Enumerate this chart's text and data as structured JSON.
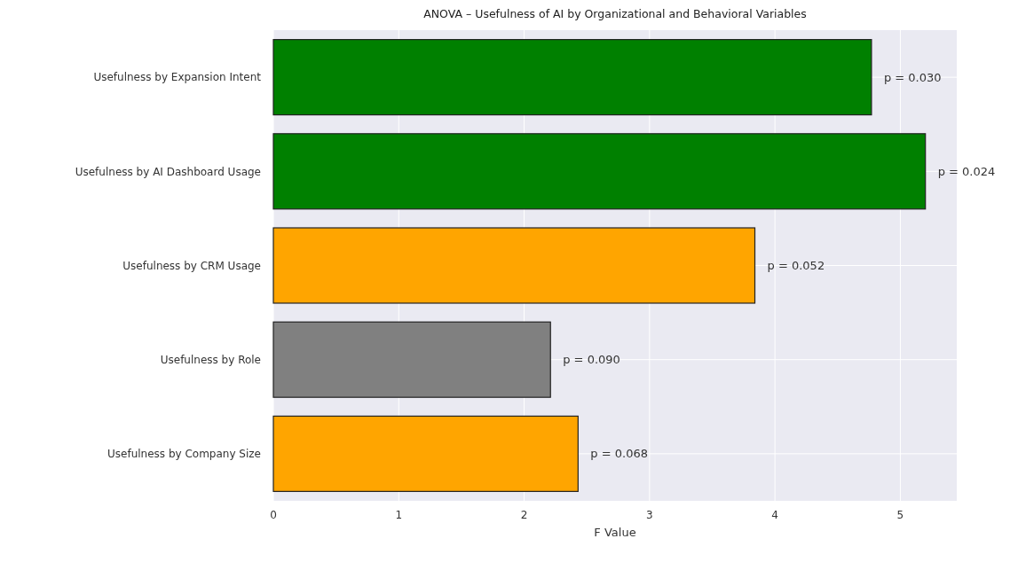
{
  "chart_data": {
    "type": "bar",
    "orientation": "horizontal",
    "title": "ANOVA – Usefulness of AI by Organizational and Behavioral Variables",
    "xlabel": "F Value",
    "categories": [
      "Usefulness by Expansion Intent",
      "Usefulness by AI Dashboard Usage",
      "Usefulness by CRM Usage",
      "Usefulness by Role",
      "Usefulness by Company Size"
    ],
    "values": [
      4.77,
      5.2,
      3.84,
      2.21,
      2.43
    ],
    "colors": [
      "#008000",
      "#008000",
      "#ffa500",
      "#808080",
      "#ffa500"
    ],
    "xlim": [
      0,
      5.45
    ],
    "xticks": [
      0,
      1,
      2,
      3,
      4,
      5
    ],
    "grid": true,
    "annotations": [
      {
        "text": "p = 0.030",
        "x": 4.77,
        "y": "Usefulness by Expansion Intent"
      },
      {
        "text": "p = 0.024",
        "x": 5.2,
        "y": "Usefulness by AI Dashboard Usage"
      },
      {
        "text": "p = 0.052",
        "x": 3.84,
        "y": "Usefulness by CRM Usage"
      },
      {
        "text": "p = 0.090",
        "x": 2.21,
        "y": "Usefulness by Role"
      },
      {
        "text": "p = 0.068",
        "x": 2.43,
        "y": "Usefulness by Company Size"
      }
    ]
  }
}
